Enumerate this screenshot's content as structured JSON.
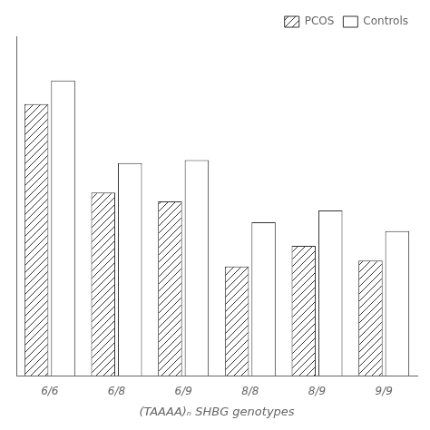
{
  "chart_data": {
    "type": "bar",
    "categories": [
      "6/6",
      "6/8",
      "6/9",
      "8/8",
      "8/9",
      "9/9"
    ],
    "series": [
      {
        "name": "PCOS",
        "color": "#333333",
        "values": [
          0.92,
          0.62,
          0.59,
          0.37,
          0.44,
          0.39
        ]
      },
      {
        "name": "Controls",
        "color": "#333333",
        "values": [
          1.0,
          0.72,
          0.73,
          0.52,
          0.56,
          0.49
        ]
      }
    ],
    "xlabel": "(TAAAA)ₙ SHBG genotypes",
    "ylim": [
      0,
      1.15
    ],
    "grid": false,
    "legend": "upper right",
    "tick_labels": "x"
  }
}
